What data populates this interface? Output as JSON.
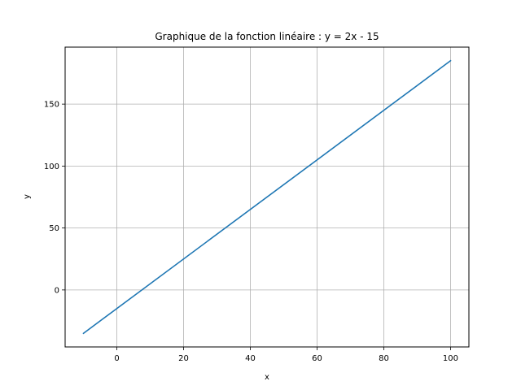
{
  "chart_data": {
    "type": "line",
    "title": "Graphique de la fonction linéaire : y = 2x - 15",
    "xlabel": "x",
    "ylabel": "y",
    "xlim": [
      -15.5,
      105.5
    ],
    "ylim": [
      -46,
      196
    ],
    "xticks": [
      0,
      20,
      40,
      60,
      80,
      100
    ],
    "yticks": [
      0,
      50,
      100,
      150
    ],
    "grid": true,
    "series": [
      {
        "color": "#1f77b4",
        "x": [
          -10,
          100
        ],
        "y": [
          -35,
          185
        ]
      }
    ]
  }
}
